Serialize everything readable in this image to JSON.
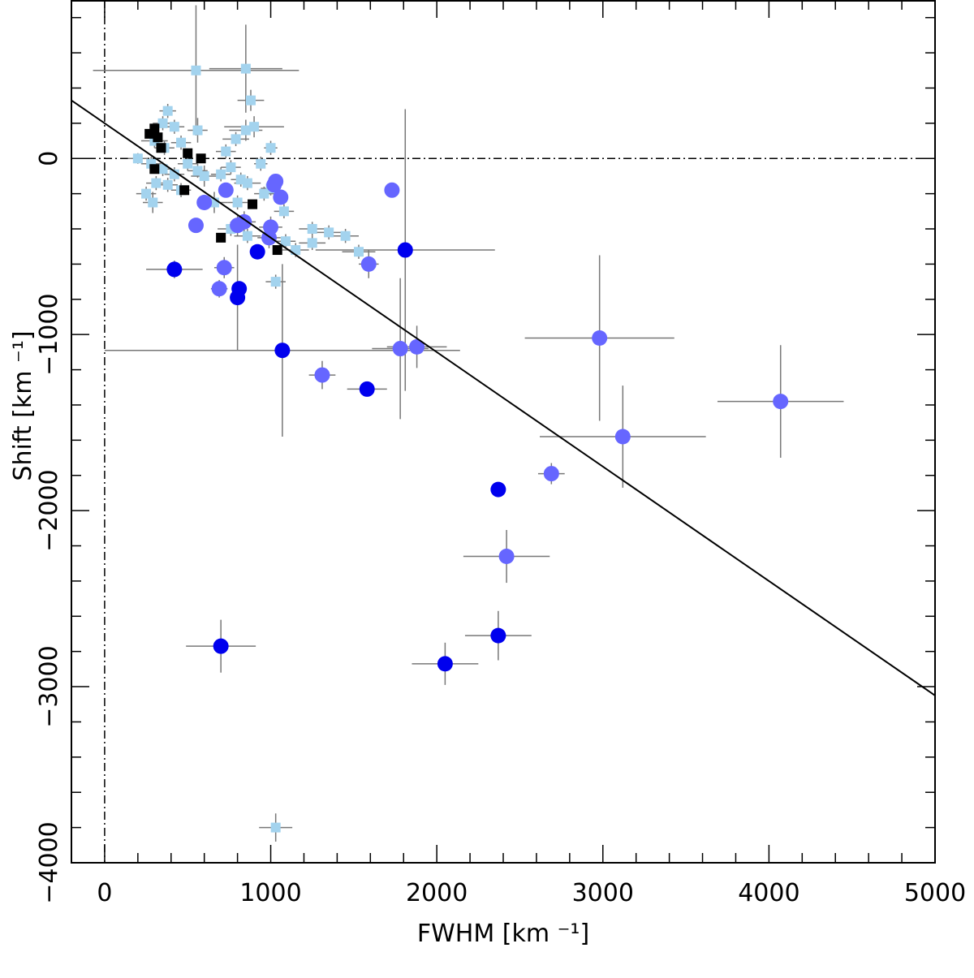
{
  "chart_data": {
    "type": "scatter",
    "title": "",
    "xlabel": "FWHM [km ⁻¹]",
    "ylabel": "Shift [km ⁻¹]",
    "xlim": [
      -200,
      5000
    ],
    "ylim": [
      -4000,
      900
    ],
    "x_ticks": [
      0,
      1000,
      2000,
      3000,
      4000,
      5000
    ],
    "y_ticks": [
      -4000,
      -3000,
      -2000,
      -1000,
      0
    ],
    "x_tick_labels": [
      "0",
      "1000",
      "2000",
      "3000",
      "4000",
      "5000"
    ],
    "y_tick_labels": [
      "−4000",
      "−3000",
      "−2000",
      "−1000",
      "0"
    ],
    "reference_lines": [
      {
        "orientation": "horizontal",
        "value": 0,
        "style": "dash-dot"
      },
      {
        "orientation": "vertical",
        "value": 0,
        "style": "dash-dot"
      }
    ],
    "fit_line": {
      "x": [
        -200,
        5000
      ],
      "y": [
        330,
        -3050
      ]
    },
    "series": [
      {
        "name": "light-blue squares",
        "marker": "square",
        "color": "#a3d3ee",
        "points": [
          {
            "x": 550,
            "y": 500,
            "xerr": 620,
            "yerr": 370
          },
          {
            "x": 850,
            "y": 510,
            "xerr": 220,
            "yerr": 250
          },
          {
            "x": 880,
            "y": 330,
            "xerr": 80,
            "yerr": 60
          },
          {
            "x": 380,
            "y": 270,
            "xerr": 50,
            "yerr": 40
          },
          {
            "x": 350,
            "y": 200,
            "xerr": 60,
            "yerr": 40
          },
          {
            "x": 420,
            "y": 180,
            "xerr": 60,
            "yerr": 40
          },
          {
            "x": 560,
            "y": 160,
            "xerr": 60,
            "yerr": 70
          },
          {
            "x": 300,
            "y": 100,
            "xerr": 80,
            "yerr": 40
          },
          {
            "x": 360,
            "y": 60,
            "xerr": 60,
            "yerr": 40
          },
          {
            "x": 460,
            "y": 90,
            "xerr": 60,
            "yerr": 40
          },
          {
            "x": 850,
            "y": 160,
            "xerr": 100,
            "yerr": 60
          },
          {
            "x": 900,
            "y": 180,
            "xerr": 180,
            "yerr": 60
          },
          {
            "x": 790,
            "y": 110,
            "xerr": 80,
            "yerr": 40
          },
          {
            "x": 730,
            "y": 40,
            "xerr": 60,
            "yerr": 40
          },
          {
            "x": 1000,
            "y": 60,
            "xerr": 40,
            "yerr": 40
          },
          {
            "x": 200,
            "y": 0,
            "xerr": 60,
            "yerr": 30
          },
          {
            "x": 280,
            "y": -30,
            "xerr": 60,
            "yerr": 40
          },
          {
            "x": 350,
            "y": -60,
            "xerr": 50,
            "yerr": 40
          },
          {
            "x": 420,
            "y": -90,
            "xerr": 60,
            "yerr": 40
          },
          {
            "x": 500,
            "y": -30,
            "xerr": 60,
            "yerr": 40
          },
          {
            "x": 560,
            "y": -70,
            "xerr": 60,
            "yerr": 40
          },
          {
            "x": 600,
            "y": -100,
            "xerr": 80,
            "yerr": 60
          },
          {
            "x": 700,
            "y": -90,
            "xerr": 60,
            "yerr": 40
          },
          {
            "x": 760,
            "y": -50,
            "xerr": 60,
            "yerr": 40
          },
          {
            "x": 940,
            "y": -30,
            "xerr": 40,
            "yerr": 40
          },
          {
            "x": 820,
            "y": -120,
            "xerr": 60,
            "yerr": 40
          },
          {
            "x": 860,
            "y": -140,
            "xerr": 80,
            "yerr": 40
          },
          {
            "x": 310,
            "y": -140,
            "xerr": 60,
            "yerr": 40
          },
          {
            "x": 380,
            "y": -150,
            "xerr": 60,
            "yerr": 40
          },
          {
            "x": 250,
            "y": -200,
            "xerr": 60,
            "yerr": 40
          },
          {
            "x": 290,
            "y": -250,
            "xerr": 60,
            "yerr": 60
          },
          {
            "x": 460,
            "y": -180,
            "xerr": 60,
            "yerr": 40
          },
          {
            "x": 660,
            "y": -250,
            "xerr": 80,
            "yerr": 60
          },
          {
            "x": 800,
            "y": -250,
            "xerr": 60,
            "yerr": 40
          },
          {
            "x": 960,
            "y": -200,
            "xerr": 60,
            "yerr": 40
          },
          {
            "x": 1000,
            "y": -170,
            "xerr": 60,
            "yerr": 40
          },
          {
            "x": 1080,
            "y": -300,
            "xerr": 60,
            "yerr": 40
          },
          {
            "x": 760,
            "y": -400,
            "xerr": 80,
            "yerr": 40
          },
          {
            "x": 860,
            "y": -440,
            "xerr": 80,
            "yerr": 40
          },
          {
            "x": 1090,
            "y": -470,
            "xerr": 60,
            "yerr": 40
          },
          {
            "x": 1150,
            "y": -520,
            "xerr": 80,
            "yerr": 40
          },
          {
            "x": 1250,
            "y": -400,
            "xerr": 80,
            "yerr": 40
          },
          {
            "x": 1250,
            "y": -480,
            "xerr": 80,
            "yerr": 40
          },
          {
            "x": 1350,
            "y": -420,
            "xerr": 80,
            "yerr": 40
          },
          {
            "x": 1450,
            "y": -440,
            "xerr": 80,
            "yerr": 40
          },
          {
            "x": 1530,
            "y": -530,
            "xerr": 100,
            "yerr": 40
          },
          {
            "x": 1030,
            "y": -700,
            "xerr": 60,
            "yerr": 40
          },
          {
            "x": 1030,
            "y": -3800,
            "xerr": 100,
            "yerr": 80
          }
        ]
      },
      {
        "name": "black squares",
        "marker": "square",
        "color": "#000000",
        "points": [
          {
            "x": 270,
            "y": 140,
            "xerr": 0,
            "yerr": 0
          },
          {
            "x": 300,
            "y": 170,
            "xerr": 0,
            "yerr": 0
          },
          {
            "x": 320,
            "y": 120,
            "xerr": 0,
            "yerr": 0
          },
          {
            "x": 340,
            "y": 60,
            "xerr": 0,
            "yerr": 0
          },
          {
            "x": 300,
            "y": -60,
            "xerr": 0,
            "yerr": 0
          },
          {
            "x": 500,
            "y": 30,
            "xerr": 0,
            "yerr": 0
          },
          {
            "x": 580,
            "y": 0,
            "xerr": 0,
            "yerr": 0
          },
          {
            "x": 480,
            "y": -180,
            "xerr": 0,
            "yerr": 0
          },
          {
            "x": 700,
            "y": -450,
            "xerr": 0,
            "yerr": 0
          },
          {
            "x": 890,
            "y": -260,
            "xerr": 0,
            "yerr": 0
          },
          {
            "x": 1040,
            "y": -520,
            "xerr": 0,
            "yerr": 0
          }
        ]
      },
      {
        "name": "medium-blue circles",
        "marker": "circle",
        "color": "#6666ff",
        "points": [
          {
            "x": 1730,
            "y": -180,
            "xerr": 0,
            "yerr": 0
          },
          {
            "x": 1030,
            "y": -130,
            "xerr": 0,
            "yerr": 0
          },
          {
            "x": 1020,
            "y": -150,
            "xerr": 0,
            "yerr": 0
          },
          {
            "x": 1060,
            "y": -220,
            "xerr": 0,
            "yerr": 0
          },
          {
            "x": 730,
            "y": -180,
            "xerr": 0,
            "yerr": 0
          },
          {
            "x": 600,
            "y": -250,
            "xerr": 0,
            "yerr": 0
          },
          {
            "x": 550,
            "y": -380,
            "xerr": 0,
            "yerr": 0
          },
          {
            "x": 840,
            "y": -360,
            "xerr": 70,
            "yerr": 60
          },
          {
            "x": 800,
            "y": -380,
            "xerr": 70,
            "yerr": 60
          },
          {
            "x": 1000,
            "y": -390,
            "xerr": 70,
            "yerr": 60
          },
          {
            "x": 990,
            "y": -450,
            "xerr": 70,
            "yerr": 60
          },
          {
            "x": 1590,
            "y": -600,
            "xerr": 60,
            "yerr": 80
          },
          {
            "x": 720,
            "y": -620,
            "xerr": 60,
            "yerr": 60
          },
          {
            "x": 690,
            "y": -740,
            "xerr": 50,
            "yerr": 50
          },
          {
            "x": 1780,
            "y": -1080,
            "xerr": 170,
            "yerr": 400
          },
          {
            "x": 1880,
            "y": -1070,
            "xerr": 180,
            "yerr": 120
          },
          {
            "x": 1310,
            "y": -1230,
            "xerr": 80,
            "yerr": 80
          },
          {
            "x": 2980,
            "y": -1020,
            "xerr": 450,
            "yerr": 470
          },
          {
            "x": 4070,
            "y": -1380,
            "xerr": 380,
            "yerr": 320
          },
          {
            "x": 3120,
            "y": -1580,
            "xerr": 500,
            "yerr": 290
          },
          {
            "x": 2690,
            "y": -1790,
            "xerr": 80,
            "yerr": 60
          },
          {
            "x": 2420,
            "y": -2260,
            "xerr": 260,
            "yerr": 150
          }
        ]
      },
      {
        "name": "dark-blue circles",
        "marker": "circle",
        "color": "#0000ee",
        "points": [
          {
            "x": 1810,
            "y": -520,
            "xerr": 540,
            "yerr": 800
          },
          {
            "x": 920,
            "y": -530,
            "xerr": 0,
            "yerr": 0
          },
          {
            "x": 420,
            "y": -630,
            "xerr": 170,
            "yerr": 50
          },
          {
            "x": 810,
            "y": -740,
            "xerr": 40,
            "yerr": 40
          },
          {
            "x": 800,
            "y": -790,
            "xerr": 40,
            "yerr": 300
          },
          {
            "x": 1070,
            "y": -1090,
            "xerr": 1070,
            "yerr": 490
          },
          {
            "x": 1580,
            "y": -1310,
            "xerr": 120,
            "yerr": 40
          },
          {
            "x": 2370,
            "y": -1880,
            "xerr": 30,
            "yerr": 40
          },
          {
            "x": 2370,
            "y": -2710,
            "xerr": 200,
            "yerr": 140
          },
          {
            "x": 700,
            "y": -2770,
            "xerr": 210,
            "yerr": 150
          },
          {
            "x": 2050,
            "y": -2870,
            "xerr": 200,
            "yerr": 120
          }
        ]
      }
    ]
  }
}
